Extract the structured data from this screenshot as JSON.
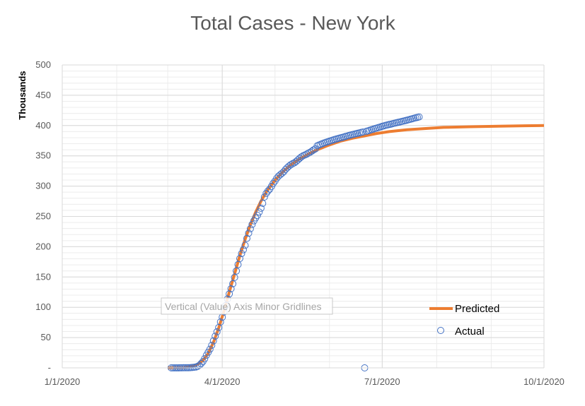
{
  "chart_data": {
    "type": "scatter",
    "title": "Total Cases - New York",
    "ylabel": "Thousands",
    "xlabel": "",
    "xlim": [
      "1/1/2020",
      "10/1/2020"
    ],
    "ylim": [
      0,
      500
    ],
    "x_ticks": [
      "1/1/2020",
      "4/1/2020",
      "7/1/2020",
      "10/1/2020"
    ],
    "y_ticks": [
      {
        "value": 0,
        "label": "-"
      },
      {
        "value": 50,
        "label": "50"
      },
      {
        "value": 100,
        "label": "100"
      },
      {
        "value": 150,
        "label": "150"
      },
      {
        "value": 200,
        "label": "200"
      },
      {
        "value": 250,
        "label": "250"
      },
      {
        "value": 300,
        "label": "300"
      },
      {
        "value": 350,
        "label": "350"
      },
      {
        "value": 400,
        "label": "400"
      },
      {
        "value": 450,
        "label": "450"
      },
      {
        "value": 500,
        "label": "500"
      }
    ],
    "grid": {
      "major": true,
      "minor": true
    },
    "legend_position": "right",
    "tooltip": "Vertical (Value) Axis Minor Gridlines",
    "series": [
      {
        "name": "Predicted",
        "style": "line",
        "color": "#ED7D31",
        "points": [
          [
            "3/1/2020",
            0
          ],
          [
            "3/10/2020",
            0.5
          ],
          [
            "3/14/2020",
            2
          ],
          [
            "3/18/2020",
            6
          ],
          [
            "3/21/2020",
            12
          ],
          [
            "3/24/2020",
            24
          ],
          [
            "3/27/2020",
            42
          ],
          [
            "3/30/2020",
            66
          ],
          [
            "4/2/2020",
            94
          ],
          [
            "4/5/2020",
            125
          ],
          [
            "4/8/2020",
            155
          ],
          [
            "4/11/2020",
            185
          ],
          [
            "4/14/2020",
            212
          ],
          [
            "4/17/2020",
            236
          ],
          [
            "4/20/2020",
            257
          ],
          [
            "4/23/2020",
            275
          ],
          [
            "4/26/2020",
            290
          ],
          [
            "4/29/2020",
            302
          ],
          [
            "5/2/2020",
            313
          ],
          [
            "5/6/2020",
            325
          ],
          [
            "5/10/2020",
            335
          ],
          [
            "5/15/2020",
            345
          ],
          [
            "5/20/2020",
            353
          ],
          [
            "5/25/2020",
            360
          ],
          [
            "5/31/2020",
            367
          ],
          [
            "6/7/2020",
            374
          ],
          [
            "6/14/2020",
            379
          ],
          [
            "6/21/2020",
            383
          ],
          [
            "6/28/2020",
            387
          ],
          [
            "7/5/2020",
            390
          ],
          [
            "7/15/2020",
            393
          ],
          [
            "7/25/2020",
            395
          ],
          [
            "8/5/2020",
            397
          ],
          [
            "8/20/2020",
            398
          ],
          [
            "9/5/2020",
            399
          ],
          [
            "9/20/2020",
            399.6
          ],
          [
            "10/1/2020",
            400
          ]
        ]
      },
      {
        "name": "Actual",
        "style": "marker",
        "color": "#4472C4",
        "points": [
          [
            "3/3/2020",
            0
          ],
          [
            "3/4/2020",
            0
          ],
          [
            "3/5/2020",
            0
          ],
          [
            "3/6/2020",
            0
          ],
          [
            "3/7/2020",
            0
          ],
          [
            "3/8/2020",
            0.1
          ],
          [
            "3/9/2020",
            0.1
          ],
          [
            "3/10/2020",
            0.2
          ],
          [
            "3/11/2020",
            0.2
          ],
          [
            "3/12/2020",
            0.3
          ],
          [
            "3/13/2020",
            0.4
          ],
          [
            "3/14/2020",
            0.5
          ],
          [
            "3/15/2020",
            0.7
          ],
          [
            "3/16/2020",
            1.0
          ],
          [
            "3/17/2020",
            1.4
          ],
          [
            "3/18/2020",
            2.4
          ],
          [
            "3/19/2020",
            4.2
          ],
          [
            "3/20/2020",
            7.1
          ],
          [
            "3/21/2020",
            10.4
          ],
          [
            "3/22/2020",
            15.2
          ],
          [
            "3/23/2020",
            20.9
          ],
          [
            "3/24/2020",
            25.7
          ],
          [
            "3/25/2020",
            30.8
          ],
          [
            "3/26/2020",
            37.3
          ],
          [
            "3/27/2020",
            44.6
          ],
          [
            "3/28/2020",
            52.3
          ],
          [
            "3/29/2020",
            59.5
          ],
          [
            "3/30/2020",
            66.5
          ],
          [
            "3/31/2020",
            75.8
          ],
          [
            "4/1/2020",
            83.7
          ],
          [
            "4/2/2020",
            92.4
          ],
          [
            "4/3/2020",
            102.9
          ],
          [
            "4/4/2020",
            113.7
          ],
          [
            "4/5/2020",
            122.0
          ],
          [
            "4/6/2020",
            130.7
          ],
          [
            "4/7/2020",
            138.8
          ],
          [
            "4/8/2020",
            149.3
          ],
          [
            "4/9/2020",
            159.9
          ],
          [
            "4/10/2020",
            170.5
          ],
          [
            "4/11/2020",
            180.5
          ],
          [
            "4/12/2020",
            188.7
          ],
          [
            "4/13/2020",
            195.0
          ],
          [
            "4/14/2020",
            202.2
          ],
          [
            "4/15/2020",
            213.8
          ],
          [
            "4/16/2020",
            222.3
          ],
          [
            "4/17/2020",
            229.6
          ],
          [
            "4/18/2020",
            236.7
          ],
          [
            "4/19/2020",
            242.8
          ],
          [
            "4/20/2020",
            247.5
          ],
          [
            "4/21/2020",
            251.7
          ],
          [
            "4/22/2020",
            257.2
          ],
          [
            "4/23/2020",
            263.5
          ],
          [
            "4/24/2020",
            271.6
          ],
          [
            "4/25/2020",
            282.1
          ],
          [
            "4/26/2020",
            288.0
          ],
          [
            "4/27/2020",
            291.9
          ],
          [
            "4/28/2020",
            295.1
          ],
          [
            "4/29/2020",
            299.7
          ],
          [
            "4/30/2020",
            304.4
          ],
          [
            "5/1/2020",
            308.3
          ],
          [
            "5/2/2020",
            312.9
          ],
          [
            "5/3/2020",
            316.4
          ],
          [
            "5/4/2020",
            318.9
          ],
          [
            "5/5/2020",
            321.2
          ],
          [
            "5/6/2020",
            323.9
          ],
          [
            "5/7/2020",
            327.5
          ],
          [
            "5/8/2020",
            330.4
          ],
          [
            "5/9/2020",
            333.1
          ],
          [
            "5/10/2020",
            335.4
          ],
          [
            "5/11/2020",
            337.1
          ],
          [
            "5/12/2020",
            338.5
          ],
          [
            "5/13/2020",
            340.7
          ],
          [
            "5/14/2020",
            343.1
          ],
          [
            "5/15/2020",
            345.8
          ],
          [
            "5/16/2020",
            348.2
          ],
          [
            "5/17/2020",
            350.1
          ],
          [
            "5/18/2020",
            351.4
          ],
          [
            "5/19/2020",
            352.8
          ],
          [
            "5/20/2020",
            354.4
          ],
          [
            "5/21/2020",
            356.0
          ],
          [
            "5/22/2020",
            357.8
          ],
          [
            "5/23/2020",
            359.9
          ],
          [
            "5/24/2020",
            361.5
          ],
          [
            "5/25/2020",
            366.5
          ],
          [
            "5/26/2020",
            367.8
          ],
          [
            "5/27/2020",
            369.0
          ],
          [
            "5/28/2020",
            370.2
          ],
          [
            "5/29/2020",
            371.3
          ],
          [
            "5/30/2020",
            372.4
          ],
          [
            "5/31/2020",
            373.3
          ],
          [
            "6/1/2020",
            374.2
          ],
          [
            "6/2/2020",
            375.2
          ],
          [
            "6/3/2020",
            376.1
          ],
          [
            "6/4/2020",
            377.0
          ],
          [
            "6/5/2020",
            377.9
          ],
          [
            "6/6/2020",
            378.7
          ],
          [
            "6/7/2020",
            379.5
          ],
          [
            "6/8/2020",
            380.2
          ],
          [
            "6/9/2020",
            381.0
          ],
          [
            "6/10/2020",
            381.9
          ],
          [
            "6/11/2020",
            382.8
          ],
          [
            "6/12/2020",
            383.6
          ],
          [
            "6/13/2020",
            384.4
          ],
          [
            "6/14/2020",
            385.1
          ],
          [
            "6/15/2020",
            385.8
          ],
          [
            "6/16/2020",
            386.5
          ],
          [
            "6/17/2020",
            387.2
          ],
          [
            "6/18/2020",
            387.9
          ],
          [
            "6/19/2020",
            388.6
          ],
          [
            "6/20/2020",
            389.3
          ],
          [
            "6/21/2020",
            0
          ],
          [
            "6/22/2020",
            390.6
          ],
          [
            "6/23/2020",
            391.4
          ],
          [
            "6/24/2020",
            392.3
          ],
          [
            "6/25/2020",
            393.2
          ],
          [
            "6/26/2020",
            394.2
          ],
          [
            "6/27/2020",
            395.1
          ],
          [
            "6/28/2020",
            396.0
          ],
          [
            "6/29/2020",
            396.9
          ],
          [
            "6/30/2020",
            397.8
          ],
          [
            "7/1/2020",
            398.7
          ],
          [
            "7/2/2020",
            399.5
          ],
          [
            "7/3/2020",
            400.4
          ],
          [
            "7/4/2020",
            401.1
          ],
          [
            "7/5/2020",
            401.8
          ],
          [
            "7/6/2020",
            402.5
          ],
          [
            "7/7/2020",
            403.2
          ],
          [
            "7/8/2020",
            403.9
          ],
          [
            "7/9/2020",
            404.6
          ],
          [
            "7/10/2020",
            405.3
          ],
          [
            "7/11/2020",
            406.0
          ],
          [
            "7/12/2020",
            406.7
          ],
          [
            "7/13/2020",
            407.4
          ],
          [
            "7/14/2020",
            408.1
          ],
          [
            "7/15/2020",
            408.8
          ],
          [
            "7/16/2020",
            409.6
          ],
          [
            "7/17/2020",
            410.4
          ],
          [
            "7/18/2020",
            411.2
          ],
          [
            "7/19/2020",
            412.0
          ],
          [
            "7/20/2020",
            412.8
          ],
          [
            "7/21/2020",
            413.5
          ],
          [
            "7/22/2020",
            414.2
          ]
        ]
      }
    ]
  }
}
